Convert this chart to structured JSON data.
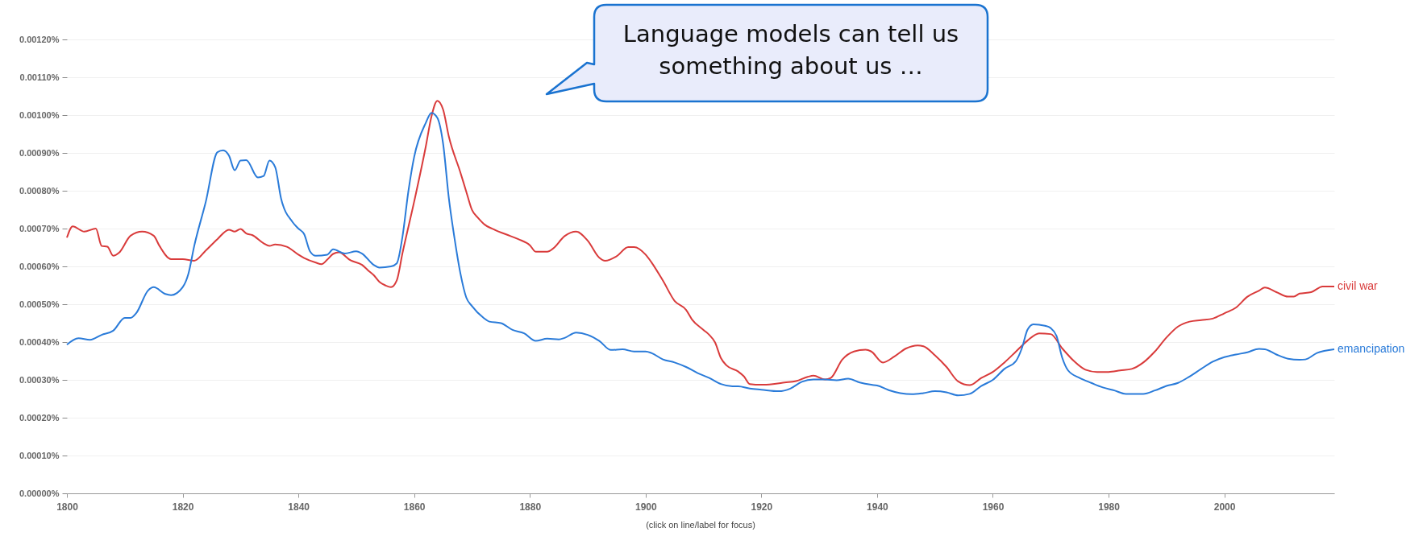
{
  "chart_data": {
    "type": "line",
    "annotations": [
      "Language models can tell us something about us …",
      "(click on line/label for focus)"
    ],
    "xlim": [
      1800,
      2019
    ],
    "xticks": [
      1800,
      1820,
      1840,
      1860,
      1880,
      1900,
      1920,
      1940,
      1960,
      1980,
      2000
    ],
    "ylim": [
      0,
      0.0012
    ],
    "yticks": [
      {
        "value": 0,
        "label": "0.00000%"
      },
      {
        "value": 0.0001,
        "label": "0.00010%"
      },
      {
        "value": 0.0002,
        "label": "0.00020%"
      },
      {
        "value": 0.0003,
        "label": "0.00030%"
      },
      {
        "value": 0.0004,
        "label": "0.00040%"
      },
      {
        "value": 0.0005,
        "label": "0.00050%"
      },
      {
        "value": 0.0006,
        "label": "0.00060%"
      },
      {
        "value": 0.0007,
        "label": "0.00070%"
      },
      {
        "value": 0.0008,
        "label": "0.00080%"
      },
      {
        "value": 0.0009,
        "label": "0.00090%"
      },
      {
        "value": 0.001,
        "label": "0.00100%"
      },
      {
        "value": 0.0011,
        "label": "0.00110%"
      },
      {
        "value": 0.0012,
        "label": "0.00120%"
      }
    ],
    "grid": "y",
    "series": [
      {
        "name": "civil war",
        "color": "#d93b3b",
        "x": [
          1800,
          1801,
          1803,
          1805,
          1806,
          1807,
          1808,
          1809,
          1811,
          1813,
          1815,
          1816,
          1818,
          1820,
          1822,
          1824,
          1826,
          1828,
          1829,
          1830,
          1831,
          1832,
          1834,
          1835,
          1836,
          1838,
          1840,
          1841,
          1843,
          1844,
          1845,
          1846,
          1847,
          1849,
          1851,
          1852,
          1853,
          1854,
          1855,
          1856,
          1857,
          1858,
          1860,
          1862,
          1863,
          1864,
          1865,
          1866,
          1868,
          1869,
          1870,
          1871,
          1872,
          1874,
          1876,
          1878,
          1880,
          1881,
          1883,
          1884,
          1886,
          1888,
          1890,
          1892,
          1893,
          1895,
          1897,
          1898,
          1900,
          1901,
          1903,
          1905,
          1907,
          1908,
          1910,
          1911,
          1912,
          1913,
          1914,
          1916,
          1917,
          1918,
          1920,
          1922,
          1924,
          1926,
          1928,
          1929,
          1931,
          1932,
          1934,
          1936,
          1938,
          1939,
          1941,
          1943,
          1945,
          1947,
          1948,
          1950,
          1952,
          1954,
          1956,
          1958,
          1960,
          1962,
          1964,
          1966,
          1968,
          1970,
          1972,
          1974,
          1976,
          1978,
          1980,
          1982,
          1984,
          1986,
          1988,
          1990,
          1992,
          1994,
          1996,
          1998,
          2000,
          2002,
          2004,
          2006,
          2007,
          2009,
          2011,
          2012,
          2013,
          2015,
          2017,
          2019
        ],
        "values": [
          0.000676,
          0.000706,
          0.000692,
          0.0007,
          0.000654,
          0.000652,
          0.000628,
          0.000636,
          0.000681,
          0.000692,
          0.000681,
          0.000654,
          0.000619,
          0.000619,
          0.000615,
          0.000642,
          0.000672,
          0.000697,
          0.000692,
          0.000699,
          0.000687,
          0.000683,
          0.000661,
          0.000654,
          0.000658,
          0.000652,
          0.000631,
          0.000622,
          0.00061,
          0.000606,
          0.000618,
          0.000633,
          0.000637,
          0.000616,
          0.000604,
          0.00059,
          0.000577,
          0.000559,
          0.00055,
          0.000545,
          0.000563,
          0.000636,
          0.000771,
          0.000916,
          0.000997,
          0.001038,
          0.001015,
          0.000943,
          0.000848,
          0.000798,
          0.000749,
          0.000729,
          0.000713,
          0.000696,
          0.000684,
          0.000672,
          0.000656,
          0.000639,
          0.000639,
          0.000647,
          0.00068,
          0.000692,
          0.000668,
          0.000623,
          0.000615,
          0.000627,
          0.000651,
          0.000651,
          0.000631,
          0.000611,
          0.000562,
          0.000509,
          0.000485,
          0.00046,
          0.000432,
          0.000419,
          0.000399,
          0.000358,
          0.000338,
          0.000322,
          0.000309,
          0.000289,
          0.000287,
          0.000289,
          0.000293,
          0.000297,
          0.000308,
          0.000311,
          0.000301,
          0.000305,
          0.000354,
          0.000375,
          0.00038,
          0.000375,
          0.000346,
          0.000362,
          0.000383,
          0.000391,
          0.000389,
          0.000365,
          0.000334,
          0.000296,
          0.000286,
          0.000305,
          0.000321,
          0.000346,
          0.000375,
          0.000404,
          0.000423,
          0.000421,
          0.000383,
          0.00035,
          0.000327,
          0.000321,
          0.000321,
          0.000325,
          0.000329,
          0.000346,
          0.000375,
          0.000412,
          0.000441,
          0.000454,
          0.000458,
          0.000462,
          0.000476,
          0.000491,
          0.00052,
          0.000536,
          0.000544,
          0.000532,
          0.00052,
          0.00052,
          0.000528,
          0.000532,
          0.000547,
          0.000547
        ]
      },
      {
        "name": "emancipation",
        "color": "#2a7bd9",
        "x": [
          1800,
          1802,
          1804,
          1806,
          1808,
          1810,
          1811,
          1812,
          1814,
          1815,
          1817,
          1818,
          1820,
          1821,
          1822,
          1824,
          1826,
          1827,
          1828,
          1829,
          1830,
          1831,
          1833,
          1834,
          1835,
          1836,
          1837,
          1839,
          1840,
          1841,
          1842,
          1843,
          1845,
          1846,
          1848,
          1850,
          1851,
          1853,
          1854,
          1856,
          1857,
          1858,
          1859,
          1860,
          1862,
          1863,
          1864,
          1865,
          1866,
          1867,
          1868,
          1869,
          1870,
          1872,
          1873,
          1875,
          1877,
          1879,
          1881,
          1883,
          1885,
          1886,
          1888,
          1890,
          1892,
          1894,
          1896,
          1898,
          1900,
          1901,
          1903,
          1905,
          1907,
          1909,
          1911,
          1913,
          1915,
          1916,
          1918,
          1920,
          1923,
          1925,
          1927,
          1929,
          1931,
          1933,
          1935,
          1937,
          1939,
          1940,
          1942,
          1944,
          1946,
          1948,
          1950,
          1952,
          1954,
          1956,
          1958,
          1960,
          1962,
          1964,
          1965,
          1966,
          1967,
          1969,
          1970,
          1971,
          1972,
          1973,
          1975,
          1977,
          1979,
          1981,
          1983,
          1986,
          1988,
          1990,
          1992,
          1994,
          1996,
          1998,
          2000,
          2002,
          2004,
          2006,
          2007,
          2009,
          2011,
          2013,
          2014,
          2016,
          2019
        ],
        "values": [
          0.000393,
          0.00041,
          0.000406,
          0.000419,
          0.00043,
          0.000464,
          0.000464,
          0.000477,
          0.000536,
          0.000545,
          0.000527,
          0.000524,
          0.000545,
          0.000581,
          0.000654,
          0.000771,
          0.000902,
          0.000907,
          0.000893,
          0.000854,
          0.00088,
          0.000881,
          0.000835,
          0.000839,
          0.00088,
          0.000862,
          0.00078,
          0.000717,
          0.0007,
          0.000685,
          0.00064,
          0.000628,
          0.000631,
          0.000645,
          0.000634,
          0.00064,
          0.000634,
          0.000604,
          0.000597,
          0.0006,
          0.000608,
          0.00068,
          0.000798,
          0.000889,
          0.000979,
          0.001006,
          0.000993,
          0.000925,
          0.00078,
          0.000672,
          0.000581,
          0.000518,
          0.000495,
          0.000464,
          0.000454,
          0.00045,
          0.000432,
          0.000423,
          0.000403,
          0.000409,
          0.000407,
          0.000411,
          0.000425,
          0.000419,
          0.000403,
          0.000379,
          0.000381,
          0.000375,
          0.000375,
          0.000371,
          0.000354,
          0.000346,
          0.000334,
          0.000318,
          0.000305,
          0.000289,
          0.000283,
          0.000283,
          0.000277,
          0.000274,
          0.00027,
          0.000277,
          0.000295,
          0.000301,
          0.000301,
          0.000299,
          0.000303,
          0.000293,
          0.000287,
          0.000285,
          0.000273,
          0.000265,
          0.000262,
          0.000265,
          0.00027,
          0.000267,
          0.000259,
          0.000263,
          0.000284,
          0.0003,
          0.000329,
          0.00035,
          0.000383,
          0.000433,
          0.000447,
          0.000443,
          0.000437,
          0.000416,
          0.000358,
          0.000325,
          0.000305,
          0.000292,
          0.00028,
          0.000272,
          0.000263,
          0.000263,
          0.000272,
          0.000284,
          0.000292,
          0.000309,
          0.000329,
          0.000348,
          0.00036,
          0.000367,
          0.000373,
          0.000382,
          0.000381,
          0.000367,
          0.000356,
          0.000353,
          0.000354,
          0.000371,
          0.000381
        ]
      }
    ]
  }
}
